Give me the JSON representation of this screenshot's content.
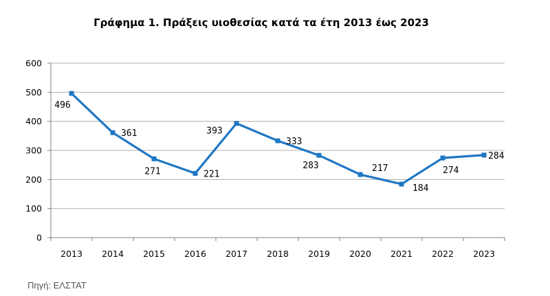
{
  "title": "Γράφημα 1. Πράξεις υιοθεσίας κατά τα έτη 2013 έως 2023",
  "source": "Πηγή: ΕΛΣΤΑΤ",
  "colors": {
    "line": "#1f77c4",
    "grid": "#b0b0b0",
    "axis": "#808080"
  },
  "chart_data": {
    "type": "line",
    "title": "Γράφημα 1. Πράξεις υιοθεσίας κατά τα έτη 2013 έως 2023",
    "xlabel": "",
    "ylabel": "",
    "categories": [
      "2013",
      "2014",
      "2015",
      "2016",
      "2017",
      "2018",
      "2019",
      "2020",
      "2021",
      "2022",
      "2023"
    ],
    "series": [
      {
        "values": [
          496,
          361,
          271,
          221,
          393,
          333,
          283,
          217,
          184,
          274,
          284
        ]
      }
    ],
    "data_labels": [
      "496",
      "361",
      "271",
      "221",
      "393",
      "333",
      "283",
      "217",
      "184",
      "274",
      "284"
    ],
    "ylim": [
      0,
      600
    ],
    "yticks": [
      0,
      100,
      200,
      300,
      400,
      500,
      600
    ],
    "grid": true,
    "legend": "none"
  }
}
